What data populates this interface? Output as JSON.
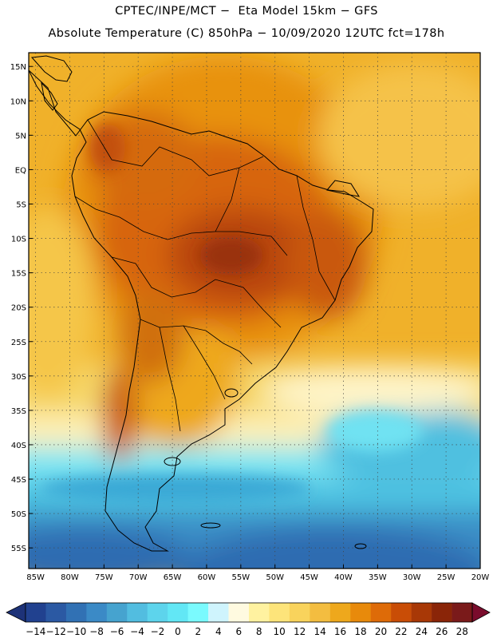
{
  "header": {
    "title_line1": "CPTEC/INPE/MCT −  Eta Model 15km − GFS",
    "title_line2": "Absolute Temperature (C) 850hPa − 10/09/2020 12UTC fct=178h"
  },
  "map": {
    "lat_labels": [
      "15N",
      "10N",
      "5N",
      "EQ",
      "5S",
      "10S",
      "15S",
      "20S",
      "25S",
      "30S",
      "35S",
      "40S",
      "45S",
      "50S",
      "55S"
    ],
    "lon_labels": [
      "85W",
      "80W",
      "75W",
      "70W",
      "65W",
      "60W",
      "55W",
      "50W",
      "45W",
      "40W",
      "35W",
      "30W",
      "25W",
      "20W"
    ],
    "lat_range": [
      -58,
      17
    ],
    "lon_range": [
      -86,
      -20
    ]
  },
  "colorbar": {
    "labels": [
      "-14",
      "-12",
      "-10",
      "-8",
      "-6",
      "-4",
      "-2",
      "0",
      "2",
      "4",
      "6",
      "8",
      "10",
      "12",
      "14",
      "16",
      "18",
      "20",
      "22",
      "24",
      "26",
      "28"
    ],
    "colors": [
      "#21418f",
      "#2b59a3",
      "#3171b4",
      "#3b8ac6",
      "#46a3cf",
      "#52bde0",
      "#5dd4ec",
      "#62e7f5",
      "#7afafe",
      "#cff4fd",
      "#fffae0",
      "#fff2a0",
      "#fde47a",
      "#f9d35c",
      "#f3bd40",
      "#eea81c",
      "#e88a0b",
      "#de6b08",
      "#c94d06",
      "#a83806",
      "#8a2508",
      "#7a1a1a"
    ],
    "low_color": "#1d3278",
    "high_color": "#7a0c2c"
  }
}
